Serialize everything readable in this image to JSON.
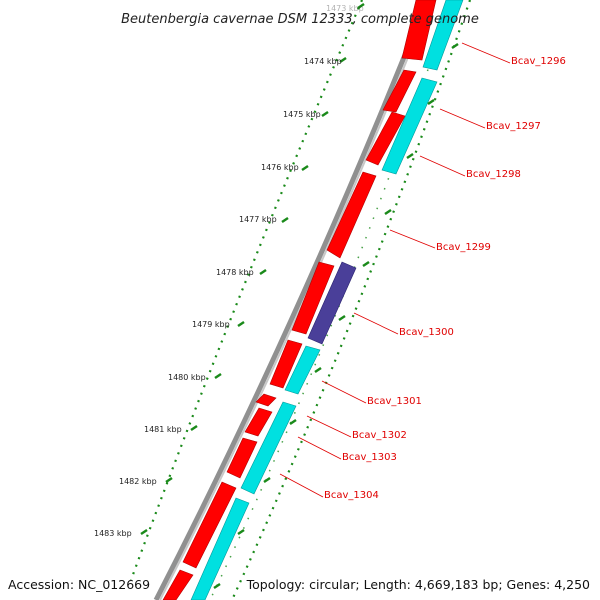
{
  "title": "Beutenbergia cavernae DSM 12333, complete genome",
  "footer": {
    "accession": "Accession: NC_012669",
    "summary": "Topology: circular; Length: 4,669,183 bp; Genes: 4,250"
  },
  "ticks": [
    "1473 kbp",
    "1474 kbp",
    "1475 kbp",
    "1476 kbp",
    "1477 kbp",
    "1478 kbp",
    "1479 kbp",
    "1480 kbp",
    "1481 kbp",
    "1482 kbp",
    "1483 kbp"
  ],
  "gene_labels": [
    "Bcav_1296",
    "Bcav_1297",
    "Bcav_1298",
    "Bcav_1299",
    "Bcav_1300",
    "Bcav_1301",
    "Bcav_1302",
    "Bcav_1303",
    "Bcav_1304"
  ],
  "colors": {
    "cds": "#ff0000",
    "feature": "#00e0e0",
    "other_feature": "#4a3f99",
    "backbone": "#909090",
    "ticks": "#1a8a1a",
    "label": "#e00000"
  }
}
